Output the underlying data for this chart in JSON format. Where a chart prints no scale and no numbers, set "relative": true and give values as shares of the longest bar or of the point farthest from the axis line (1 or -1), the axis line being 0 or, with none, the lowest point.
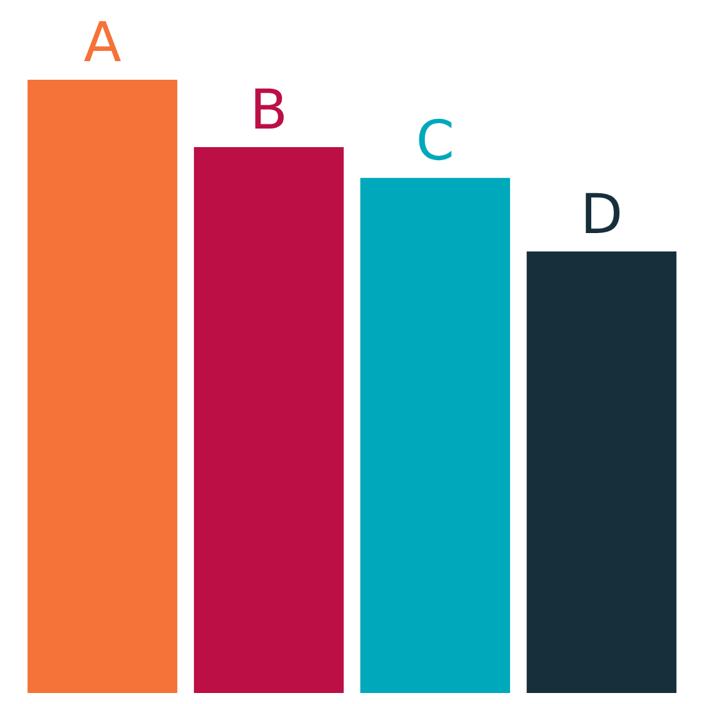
{
  "chart_data": {
    "type": "bar",
    "categories": [
      "A",
      "B",
      "C",
      "D"
    ],
    "values": [
      1,
      0.89,
      0.84,
      0.72
    ],
    "colors": [
      "#f57238",
      "#bb0f45",
      "#00a8bc",
      "#172e3b"
    ],
    "relative": true
  }
}
